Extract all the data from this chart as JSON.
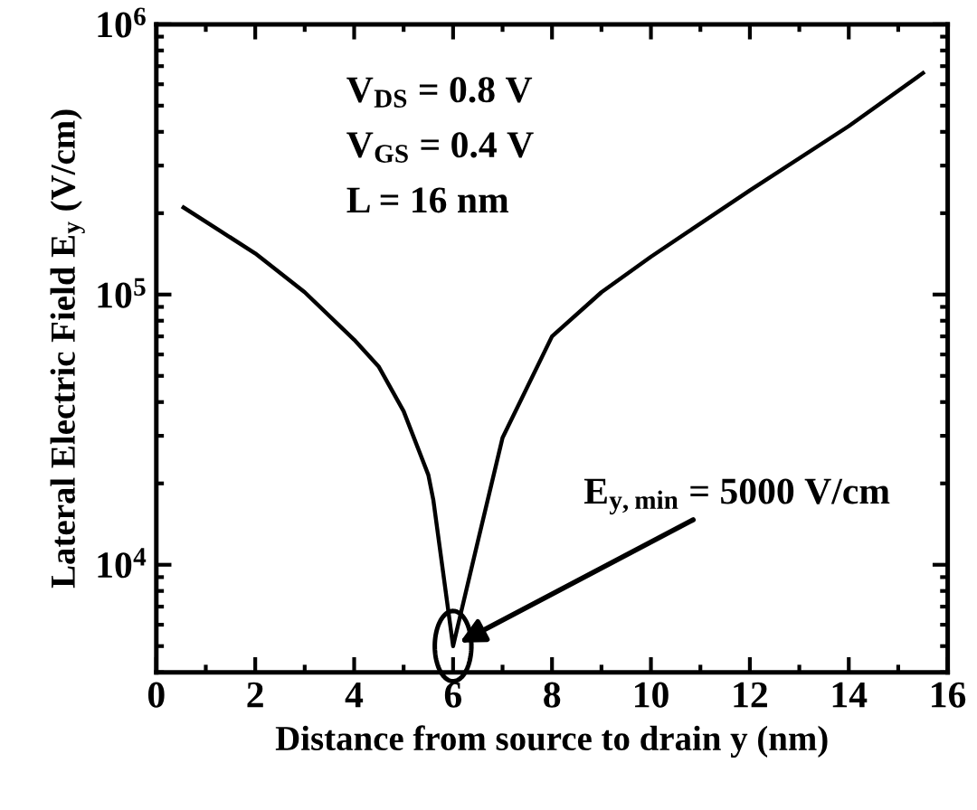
{
  "chart_data": {
    "type": "line",
    "xlabel": "Distance from source to drain y (nm)",
    "ylabel": "Lateral Electric Field E$_{y}$ (V/cm)",
    "x": [
      0.55,
      2,
      3,
      4,
      4.5,
      5,
      5.5,
      5.6,
      6,
      6.5,
      7,
      8,
      9,
      10,
      12,
      14,
      15.5
    ],
    "series": [
      {
        "color": "#000000",
        "values": [
          210000,
          142000,
          102000,
          68000,
          54000,
          37000,
          21500,
          17400,
          5000,
          12200,
          29500,
          70000,
          102000,
          138000,
          243000,
          420000,
          660000
        ]
      }
    ],
    "log": "y",
    "xlim": [
      0,
      16
    ],
    "xticks": [
      0,
      2,
      4,
      6,
      8,
      10,
      12,
      14,
      16
    ],
    "ylim": [
      4000,
      1000000
    ],
    "yticks": [
      {
        "value": 10000,
        "label": "10$^{4}$"
      },
      {
        "value": 100000,
        "label": "10$^{5}$"
      },
      {
        "value": 1000000,
        "label": "10$^{6}$"
      }
    ],
    "grid": false,
    "legend": false,
    "marker": "none",
    "line_style": "solid",
    "annotations": [
      "V$_{DS}$ = 0.8 V",
      "V$_{GS}$ = 0.4 V",
      "L = 16 nm",
      {
        "text": "E$_{y,min}$ = 5000 V/cm",
        "x": 6,
        "y": 5000
      }
    ]
  }
}
